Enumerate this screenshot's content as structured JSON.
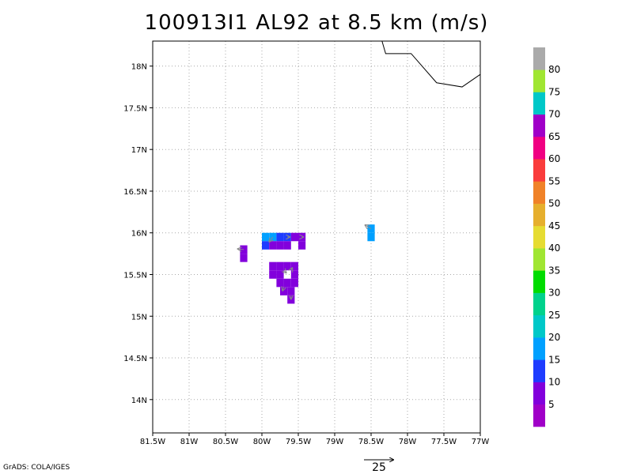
{
  "title": "100913I1 AL92 at 8.5 km (m/s)",
  "credit": "GrADS: COLA/IGES",
  "reference_vector": {
    "label": "25",
    "value": 25
  },
  "map": {
    "lon_range": [
      -81.5,
      -77.0
    ],
    "lat_range": [
      13.6,
      18.3
    ],
    "xticks": [
      {
        "value": -81.5,
        "label": "81.5W"
      },
      {
        "value": -81.0,
        "label": "81W"
      },
      {
        "value": -80.5,
        "label": "80.5W"
      },
      {
        "value": -80.0,
        "label": "80W"
      },
      {
        "value": -79.5,
        "label": "79.5W"
      },
      {
        "value": -79.0,
        "label": "79W"
      },
      {
        "value": -78.5,
        "label": "78.5W"
      },
      {
        "value": -78.0,
        "label": "78W"
      },
      {
        "value": -77.5,
        "label": "77.5W"
      },
      {
        "value": -77.0,
        "label": "77W"
      }
    ],
    "yticks": [
      {
        "value": 14.0,
        "label": "14N"
      },
      {
        "value": 14.5,
        "label": "14.5N"
      },
      {
        "value": 15.0,
        "label": "15N"
      },
      {
        "value": 15.5,
        "label": "15.5N"
      },
      {
        "value": 16.0,
        "label": "16N"
      },
      {
        "value": 16.5,
        "label": "16.5N"
      },
      {
        "value": 17.0,
        "label": "17N"
      },
      {
        "value": 17.5,
        "label": "17.5N"
      },
      {
        "value": 18.0,
        "label": "18N"
      }
    ],
    "grid": "dotted",
    "coastline": [
      [
        -78.35,
        18.3
      ],
      [
        -78.3,
        18.15
      ],
      [
        -77.95,
        18.15
      ],
      [
        -77.6,
        17.8
      ],
      [
        -77.25,
        17.75
      ],
      [
        -77.0,
        17.9
      ]
    ]
  },
  "colorbar": {
    "labels": [
      "5",
      "10",
      "15",
      "20",
      "25",
      "30",
      "35",
      "40",
      "45",
      "50",
      "55",
      "60",
      "65",
      "70",
      "75",
      "80"
    ],
    "colors": [
      "#a000c8",
      "#8200dc",
      "#1e3cff",
      "#00a0ff",
      "#00c8c8",
      "#00d28c",
      "#00dc00",
      "#a0e632",
      "#e6dc32",
      "#e6af2d",
      "#f08228",
      "#fa3c3c",
      "#f00082",
      "#a000c8",
      "#00c8c8",
      "#a0e632",
      "#aaaaaa"
    ]
  },
  "wind_cells": [
    {
      "lon": -80.25,
      "lat": 15.8,
      "speed": 5
    },
    {
      "lon": -80.25,
      "lat": 15.7,
      "speed": 5
    },
    {
      "lon": -79.95,
      "lat": 15.95,
      "speed": 15
    },
    {
      "lon": -79.85,
      "lat": 15.95,
      "speed": 15
    },
    {
      "lon": -79.75,
      "lat": 15.95,
      "speed": 10
    },
    {
      "lon": -79.65,
      "lat": 15.95,
      "speed": 10
    },
    {
      "lon": -79.55,
      "lat": 15.95,
      "speed": 5
    },
    {
      "lon": -79.45,
      "lat": 15.95,
      "speed": 5
    },
    {
      "lon": -79.95,
      "lat": 15.85,
      "speed": 10
    },
    {
      "lon": -79.85,
      "lat": 15.85,
      "speed": 5
    },
    {
      "lon": -79.75,
      "lat": 15.85,
      "speed": 5
    },
    {
      "lon": -79.65,
      "lat": 15.85,
      "speed": 5
    },
    {
      "lon": -79.45,
      "lat": 15.85,
      "speed": 5
    },
    {
      "lon": -79.85,
      "lat": 15.6,
      "speed": 5
    },
    {
      "lon": -79.75,
      "lat": 15.6,
      "speed": 5
    },
    {
      "lon": -79.65,
      "lat": 15.6,
      "speed": 5
    },
    {
      "lon": -79.55,
      "lat": 15.6,
      "speed": 5
    },
    {
      "lon": -79.85,
      "lat": 15.5,
      "speed": 5
    },
    {
      "lon": -79.75,
      "lat": 15.5,
      "speed": 5
    },
    {
      "lon": -79.55,
      "lat": 15.5,
      "speed": 5
    },
    {
      "lon": -79.75,
      "lat": 15.4,
      "speed": 5
    },
    {
      "lon": -79.65,
      "lat": 15.4,
      "speed": 5
    },
    {
      "lon": -79.55,
      "lat": 15.4,
      "speed": 5
    },
    {
      "lon": -79.7,
      "lat": 15.3,
      "speed": 5
    },
    {
      "lon": -79.6,
      "lat": 15.3,
      "speed": 5
    },
    {
      "lon": -79.6,
      "lat": 15.2,
      "speed": 5
    },
    {
      "lon": -78.5,
      "lat": 16.05,
      "speed": 15
    },
    {
      "lon": -78.5,
      "lat": 15.95,
      "speed": 15
    }
  ],
  "wind_vectors": [
    {
      "lon": -80.25,
      "lat": 15.8,
      "u": -5,
      "v": 0.5
    },
    {
      "lon": -79.85,
      "lat": 15.95,
      "u": -3,
      "v": -4
    },
    {
      "lon": -79.65,
      "lat": 15.95,
      "u": 2,
      "v": 0
    },
    {
      "lon": -79.45,
      "lat": 15.95,
      "u": 1,
      "v": 0
    },
    {
      "lon": -79.7,
      "lat": 15.55,
      "u": 2,
      "v": -2
    },
    {
      "lon": -79.6,
      "lat": 15.55,
      "u": 1,
      "v": 2
    },
    {
      "lon": -79.7,
      "lat": 15.35,
      "u": -1,
      "v": -3
    },
    {
      "lon": -79.6,
      "lat": 15.25,
      "u": 0,
      "v": -3
    },
    {
      "lon": -78.5,
      "lat": 16.05,
      "u": -5,
      "v": 3
    }
  ]
}
